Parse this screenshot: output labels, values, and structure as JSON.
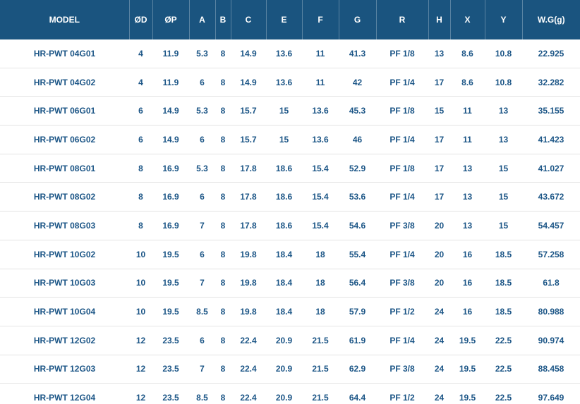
{
  "chart_data": {
    "type": "table",
    "title": "HR-PWT specification table",
    "columns": [
      "MODEL",
      "ØD",
      "ØP",
      "A",
      "B",
      "C",
      "E",
      "F",
      "G",
      "R",
      "H",
      "X",
      "Y",
      "W.G(g)"
    ],
    "rows": [
      [
        "HR-PWT 04G01",
        "4",
        "11.9",
        "5.3",
        "8",
        "14.9",
        "13.6",
        "11",
        "41.3",
        "PF 1/8",
        "13",
        "8.6",
        "10.8",
        "22.925"
      ],
      [
        "HR-PWT 04G02",
        "4",
        "11.9",
        "6",
        "8",
        "14.9",
        "13.6",
        "11",
        "42",
        "PF 1/4",
        "17",
        "8.6",
        "10.8",
        "32.282"
      ],
      [
        "HR-PWT 06G01",
        "6",
        "14.9",
        "5.3",
        "8",
        "15.7",
        "15",
        "13.6",
        "45.3",
        "PF 1/8",
        "15",
        "11",
        "13",
        "35.155"
      ],
      [
        "HR-PWT 06G02",
        "6",
        "14.9",
        "6",
        "8",
        "15.7",
        "15",
        "13.6",
        "46",
        "PF 1/4",
        "17",
        "11",
        "13",
        "41.423"
      ],
      [
        "HR-PWT 08G01",
        "8",
        "16.9",
        "5.3",
        "8",
        "17.8",
        "18.6",
        "15.4",
        "52.9",
        "PF 1/8",
        "17",
        "13",
        "15",
        "41.027"
      ],
      [
        "HR-PWT 08G02",
        "8",
        "16.9",
        "6",
        "8",
        "17.8",
        "18.6",
        "15.4",
        "53.6",
        "PF 1/4",
        "17",
        "13",
        "15",
        "43.672"
      ],
      [
        "HR-PWT 08G03",
        "8",
        "16.9",
        "7",
        "8",
        "17.8",
        "18.6",
        "15.4",
        "54.6",
        "PF 3/8",
        "20",
        "13",
        "15",
        "54.457"
      ],
      [
        "HR-PWT 10G02",
        "10",
        "19.5",
        "6",
        "8",
        "19.8",
        "18.4",
        "18",
        "55.4",
        "PF 1/4",
        "20",
        "16",
        "18.5",
        "57.258"
      ],
      [
        "HR-PWT 10G03",
        "10",
        "19.5",
        "7",
        "8",
        "19.8",
        "18.4",
        "18",
        "56.4",
        "PF 3/8",
        "20",
        "16",
        "18.5",
        "61.8"
      ],
      [
        "HR-PWT 10G04",
        "10",
        "19.5",
        "8.5",
        "8",
        "19.8",
        "18.4",
        "18",
        "57.9",
        "PF 1/2",
        "24",
        "16",
        "18.5",
        "80.988"
      ],
      [
        "HR-PWT 12G02",
        "12",
        "23.5",
        "6",
        "8",
        "22.4",
        "20.9",
        "21.5",
        "61.9",
        "PF 1/4",
        "24",
        "19.5",
        "22.5",
        "90.974"
      ],
      [
        "HR-PWT 12G03",
        "12",
        "23.5",
        "7",
        "8",
        "22.4",
        "20.9",
        "21.5",
        "62.9",
        "PF 3/8",
        "24",
        "19.5",
        "22.5",
        "88.458"
      ],
      [
        "HR-PWT 12G04",
        "12",
        "23.5",
        "8.5",
        "8",
        "22.4",
        "20.9",
        "21.5",
        "64.4",
        "PF 1/2",
        "24",
        "19.5",
        "22.5",
        "97.649"
      ]
    ]
  },
  "colors": {
    "header_bg": "#1a547f",
    "header_text": "#ffffff",
    "body_text": "#1b5586",
    "row_border": "#e4e4e4"
  }
}
